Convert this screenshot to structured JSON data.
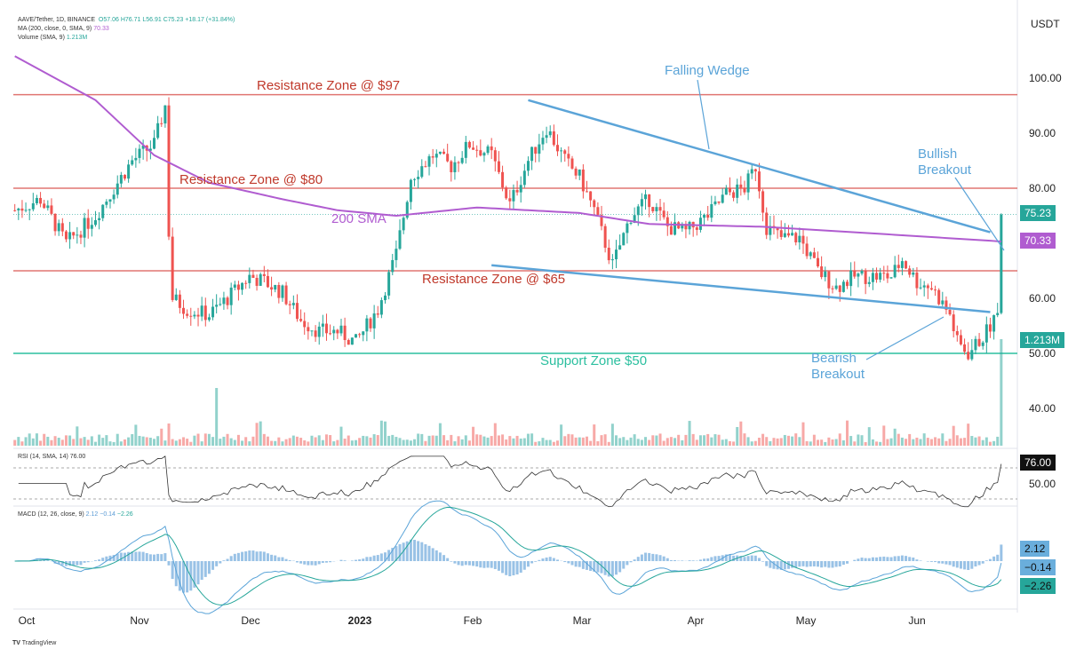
{
  "legend": {
    "symbol": "AAVE/Tether, 1D, BINANCE",
    "o": "O57.06",
    "h": "H76.71",
    "l": "L56.91",
    "c": "C75.23",
    "chg": "+18.17 (+31.84%)",
    "ma_label": "MA (200, close, 0, SMA, 9)",
    "ma_value": "70.33",
    "vol_label": "Volume (SMA, 9)",
    "vol_value": "1.213M",
    "rsi_label": "RSI (14, SMA, 14)",
    "rsi_value": "76.00",
    "macd_label": "MACD (12, 26, close, 9)",
    "macd_v1": "2.12",
    "macd_v2": "−0.14",
    "macd_v3": "−2.26"
  },
  "price_axis": {
    "currency": "USDT",
    "ticks": [
      "100.00",
      "90.00",
      "80.00",
      "60.00",
      "50.00",
      "40.00"
    ],
    "last_price": "75.23",
    "sma_value": "70.33",
    "volume_value": "1.213M",
    "rsi_value": "76.00",
    "rsi_tick": "50.00",
    "macd_values": [
      "2.12",
      "−0.14",
      "−2.26"
    ]
  },
  "time_axis": [
    "Oct",
    "Nov",
    "Dec",
    "2023",
    "Feb",
    "Mar",
    "Apr",
    "May",
    "Jun"
  ],
  "annotations": {
    "res97": "Resistance Zone @ $97",
    "res80": "Resistance Zone @ $80",
    "res65": "Resistance Zone @ $65",
    "sup50": "Support Zone $50",
    "sma": "200 SMA",
    "wedge": "Falling Wedge",
    "bull1": "Bullish",
    "bull2": "Breakout",
    "bear1": "Bearish",
    "bear2": "Breakout"
  },
  "branding": "TradingView",
  "colors": {
    "up": "#26a69a",
    "down": "#ef5350",
    "sma": "#b05cd0",
    "resistance": "#d9534f",
    "support": "#2bbf9f",
    "wedge": "#5ba4d8"
  },
  "chart_data": {
    "type": "candlestick",
    "ylim": [
      35,
      105
    ],
    "levels": {
      "resistance": [
        97,
        80,
        65
      ],
      "support": 50
    },
    "closes": [
      [
        "2022-09-28",
        76
      ],
      [
        "2022-10-05",
        78
      ],
      [
        "2022-10-12",
        70
      ],
      [
        "2022-10-20",
        75
      ],
      [
        "2022-10-30",
        85
      ],
      [
        "2022-11-05",
        88
      ],
      [
        "2022-11-08",
        95
      ],
      [
        "2022-11-09",
        72
      ],
      [
        "2022-11-10",
        60
      ],
      [
        "2022-11-14",
        58
      ],
      [
        "2022-11-20",
        57
      ],
      [
        "2022-11-25",
        60
      ],
      [
        "2022-12-01",
        64
      ],
      [
        "2022-12-05",
        63
      ],
      [
        "2022-12-10",
        61
      ],
      [
        "2022-12-15",
        56
      ],
      [
        "2022-12-20",
        54
      ],
      [
        "2022-12-25",
        54
      ],
      [
        "2022-12-30",
        52
      ],
      [
        "2023-01-05",
        58
      ],
      [
        "2023-01-10",
        68
      ],
      [
        "2023-01-14",
        82
      ],
      [
        "2023-01-20",
        86
      ],
      [
        "2023-01-25",
        84
      ],
      [
        "2023-01-30",
        88
      ],
      [
        "2023-02-05",
        86
      ],
      [
        "2023-02-10",
        77
      ],
      [
        "2023-02-15",
        85
      ],
      [
        "2023-02-20",
        91
      ],
      [
        "2023-02-25",
        85
      ],
      [
        "2023-03-01",
        82
      ],
      [
        "2023-03-05",
        76
      ],
      [
        "2023-03-10",
        66
      ],
      [
        "2023-03-15",
        75
      ],
      [
        "2023-03-20",
        78
      ],
      [
        "2023-03-25",
        73
      ],
      [
        "2023-03-30",
        72
      ],
      [
        "2023-04-05",
        75
      ],
      [
        "2023-04-10",
        79
      ],
      [
        "2023-04-15",
        80
      ],
      [
        "2023-04-18",
        84
      ],
      [
        "2023-04-21",
        73
      ],
      [
        "2023-04-25",
        71
      ],
      [
        "2023-04-30",
        71
      ],
      [
        "2023-05-05",
        65
      ],
      [
        "2023-05-10",
        62
      ],
      [
        "2023-05-15",
        64
      ],
      [
        "2023-05-20",
        64
      ],
      [
        "2023-05-25",
        64
      ],
      [
        "2023-05-28",
        67
      ],
      [
        "2023-06-01",
        63
      ],
      [
        "2023-06-05",
        62
      ],
      [
        "2023-06-10",
        57
      ],
      [
        "2023-06-12",
        52
      ],
      [
        "2023-06-15",
        50
      ],
      [
        "2023-06-19",
        53
      ],
      [
        "2023-06-23",
        57
      ],
      [
        "2023-06-24",
        75.23
      ]
    ],
    "sma200": [
      [
        "2022-09-28",
        104
      ],
      [
        "2022-10-20",
        96
      ],
      [
        "2022-11-05",
        86
      ],
      [
        "2022-11-20",
        81
      ],
      [
        "2022-12-10",
        78
      ],
      [
        "2022-12-25",
        76
      ],
      [
        "2023-01-10",
        75
      ],
      [
        "2023-02-01",
        76.5
      ],
      [
        "2023-03-01",
        75.5
      ],
      [
        "2023-03-20",
        73.5
      ],
      [
        "2023-04-20",
        73
      ],
      [
        "2023-05-15",
        72
      ],
      [
        "2023-06-24",
        70.33
      ]
    ],
    "wedge_upper": [
      [
        "2023-02-15",
        96
      ],
      [
        "2023-06-21",
        72
      ]
    ],
    "wedge_lower": [
      [
        "2023-02-05",
        66
      ],
      [
        "2023-06-21",
        57.5
      ]
    ],
    "rsi_levels": [
      70,
      30
    ]
  }
}
